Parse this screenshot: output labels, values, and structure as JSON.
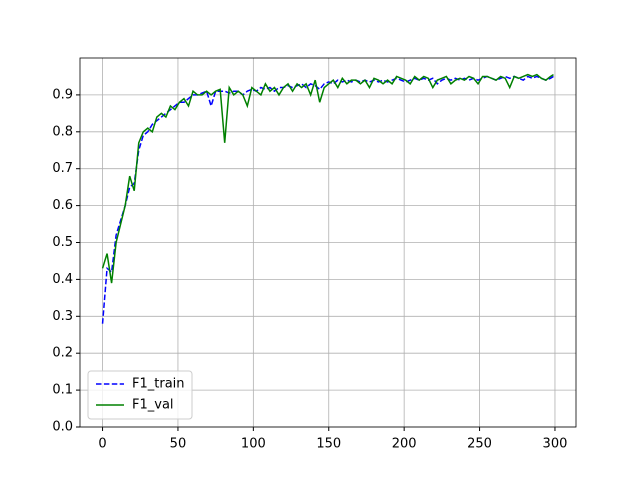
{
  "chart_data": {
    "type": "line",
    "x": [
      0,
      3,
      6,
      9,
      12,
      15,
      18,
      21,
      24,
      27,
      30,
      33,
      36,
      39,
      42,
      45,
      48,
      51,
      54,
      57,
      60,
      63,
      66,
      69,
      72,
      75,
      78,
      81,
      84,
      87,
      90,
      93,
      96,
      99,
      102,
      105,
      108,
      111,
      114,
      117,
      120,
      123,
      126,
      129,
      132,
      135,
      138,
      141,
      144,
      147,
      150,
      153,
      156,
      159,
      162,
      165,
      168,
      171,
      174,
      177,
      180,
      183,
      186,
      189,
      192,
      195,
      198,
      201,
      204,
      207,
      210,
      213,
      216,
      219,
      222,
      225,
      228,
      231,
      234,
      237,
      240,
      243,
      246,
      249,
      252,
      255,
      258,
      261,
      264,
      267,
      270,
      273,
      276,
      279,
      282,
      285,
      288,
      291,
      294,
      297,
      299
    ],
    "series": [
      {
        "name": "F1_train",
        "color": "#0000ff",
        "linestyle": "dashed",
        "values": [
          0.28,
          0.43,
          0.42,
          0.52,
          0.56,
          0.6,
          0.65,
          0.66,
          0.75,
          0.79,
          0.8,
          0.82,
          0.83,
          0.84,
          0.85,
          0.86,
          0.87,
          0.88,
          0.88,
          0.89,
          0.9,
          0.9,
          0.905,
          0.91,
          0.87,
          0.91,
          0.91,
          0.91,
          0.905,
          0.91,
          0.91,
          0.9,
          0.91,
          0.915,
          0.91,
          0.92,
          0.915,
          0.92,
          0.91,
          0.92,
          0.92,
          0.925,
          0.92,
          0.925,
          0.93,
          0.92,
          0.93,
          0.925,
          0.915,
          0.93,
          0.935,
          0.93,
          0.94,
          0.935,
          0.94,
          0.935,
          0.94,
          0.935,
          0.94,
          0.935,
          0.94,
          0.935,
          0.94,
          0.935,
          0.94,
          0.945,
          0.94,
          0.935,
          0.94,
          0.945,
          0.94,
          0.945,
          0.94,
          0.945,
          0.93,
          0.94,
          0.945,
          0.94,
          0.945,
          0.94,
          0.945,
          0.94,
          0.945,
          0.94,
          0.945,
          0.95,
          0.945,
          0.94,
          0.945,
          0.95,
          0.945,
          0.95,
          0.945,
          0.94,
          0.95,
          0.945,
          0.95,
          0.945,
          0.94,
          0.945,
          0.95
        ]
      },
      {
        "name": "F1_val",
        "color": "#008000",
        "linestyle": "solid",
        "values": [
          0.43,
          0.47,
          0.39,
          0.5,
          0.55,
          0.6,
          0.68,
          0.64,
          0.77,
          0.8,
          0.81,
          0.8,
          0.84,
          0.85,
          0.84,
          0.87,
          0.86,
          0.88,
          0.89,
          0.87,
          0.91,
          0.9,
          0.9,
          0.91,
          0.9,
          0.91,
          0.915,
          0.77,
          0.92,
          0.9,
          0.91,
          0.9,
          0.87,
          0.92,
          0.91,
          0.9,
          0.93,
          0.91,
          0.92,
          0.9,
          0.92,
          0.93,
          0.91,
          0.93,
          0.92,
          0.93,
          0.9,
          0.94,
          0.88,
          0.92,
          0.93,
          0.94,
          0.92,
          0.945,
          0.93,
          0.94,
          0.94,
          0.93,
          0.94,
          0.92,
          0.945,
          0.94,
          0.93,
          0.94,
          0.93,
          0.95,
          0.945,
          0.94,
          0.93,
          0.95,
          0.94,
          0.95,
          0.945,
          0.92,
          0.94,
          0.945,
          0.95,
          0.93,
          0.94,
          0.945,
          0.94,
          0.95,
          0.945,
          0.93,
          0.95,
          0.95,
          0.945,
          0.94,
          0.95,
          0.945,
          0.92,
          0.95,
          0.945,
          0.95,
          0.955,
          0.95,
          0.955,
          0.945,
          0.94,
          0.95,
          0.955
        ]
      }
    ],
    "xlim": [
      -14.95,
      313.95
    ],
    "ylim": [
      0,
      1.0
    ],
    "xticks": [
      0,
      50,
      100,
      150,
      200,
      250,
      300
    ],
    "yticks": [
      {
        "value": 0,
        "label": "0.0"
      },
      0.1,
      0.2,
      0.3,
      0.4,
      0.5,
      0.6,
      0.7,
      0.8,
      0.9
    ],
    "grid": true,
    "legend": "lower left"
  }
}
